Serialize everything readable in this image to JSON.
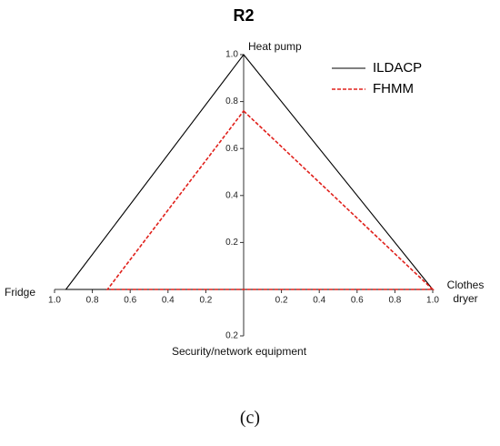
{
  "chart_data": {
    "type": "radar",
    "title": "R2",
    "axes": [
      {
        "name": "Heat pump",
        "lim": [
          0,
          1
        ],
        "ticks": [
          0.2,
          0.4,
          0.6,
          0.8,
          {
            "value": 1,
            "label": "1.0"
          }
        ]
      },
      {
        "name": "Clothes dryer",
        "lim": [
          0,
          1
        ],
        "ticks": [
          0.2,
          0.4,
          0.6,
          0.8,
          {
            "value": 1,
            "label": "1.0"
          }
        ]
      },
      {
        "name": "Security/network equipment",
        "lim": [
          0,
          0.2
        ],
        "ticks": [
          0.2
        ]
      },
      {
        "name": "Fridge",
        "lim": [
          0,
          1
        ],
        "ticks": [
          0.2,
          0.4,
          0.6,
          0.8,
          {
            "value": 1,
            "label": "1.0"
          }
        ]
      }
    ],
    "series": [
      {
        "name": "ILDACP",
        "color": "#000000",
        "dash": false,
        "values": [
          1.0,
          1.0,
          0,
          0.94
        ]
      },
      {
        "name": "FHMM",
        "color": "#e0201b",
        "dash": true,
        "values": [
          0.76,
          1.0,
          0,
          0.72
        ]
      }
    ]
  },
  "caption": "(c)"
}
